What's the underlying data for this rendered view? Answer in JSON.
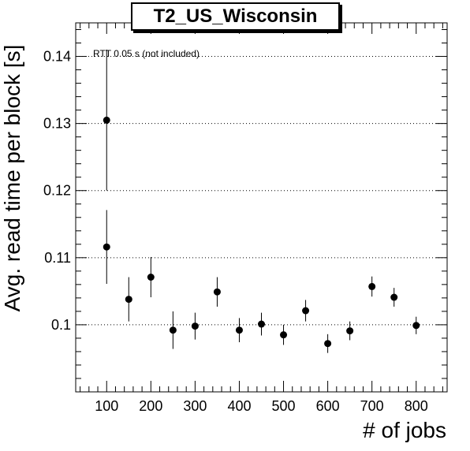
{
  "chart_data": {
    "type": "scatter",
    "title": "T2_US_Wisconsin",
    "xlabel": "# of jobs",
    "ylabel": "Avg. read time per block [s]",
    "annotation": "RTT 0.05 s (not included)",
    "xlim": [
      30,
      870
    ],
    "ylim": [
      0.09,
      0.145
    ],
    "xticks": [
      100,
      200,
      300,
      400,
      500,
      600,
      700,
      800
    ],
    "xtick_labels": [
      "100",
      "200",
      "300",
      "400",
      "500",
      "600",
      "700",
      "800"
    ],
    "yticks": [
      0.1,
      0.11,
      0.12,
      0.13,
      0.14
    ],
    "ytick_labels": [
      "0.1",
      "0.11",
      "0.12",
      "0.13",
      "0.14"
    ],
    "grid": "horizontal-dotted",
    "points": [
      {
        "x": 100,
        "y": 0.1305,
        "yerr": 0.0105
      },
      {
        "x": 100,
        "y": 0.1116,
        "yerr": 0.0055
      },
      {
        "x": 150,
        "y": 0.1038,
        "yerr": 0.0033
      },
      {
        "x": 200,
        "y": 0.1071,
        "yerr": 0.003
      },
      {
        "x": 250,
        "y": 0.0992,
        "yerr": 0.0028
      },
      {
        "x": 300,
        "y": 0.0998,
        "yerr": 0.002
      },
      {
        "x": 350,
        "y": 0.1049,
        "yerr": 0.0022
      },
      {
        "x": 400,
        "y": 0.0992,
        "yerr": 0.0018
      },
      {
        "x": 450,
        "y": 0.1001,
        "yerr": 0.0017
      },
      {
        "x": 500,
        "y": 0.0985,
        "yerr": 0.0015
      },
      {
        "x": 550,
        "y": 0.1021,
        "yerr": 0.0016
      },
      {
        "x": 600,
        "y": 0.0972,
        "yerr": 0.0014
      },
      {
        "x": 650,
        "y": 0.0991,
        "yerr": 0.0014
      },
      {
        "x": 700,
        "y": 0.1057,
        "yerr": 0.0015
      },
      {
        "x": 750,
        "y": 0.1041,
        "yerr": 0.0014
      },
      {
        "x": 800,
        "y": 0.0999,
        "yerr": 0.0013
      }
    ]
  }
}
